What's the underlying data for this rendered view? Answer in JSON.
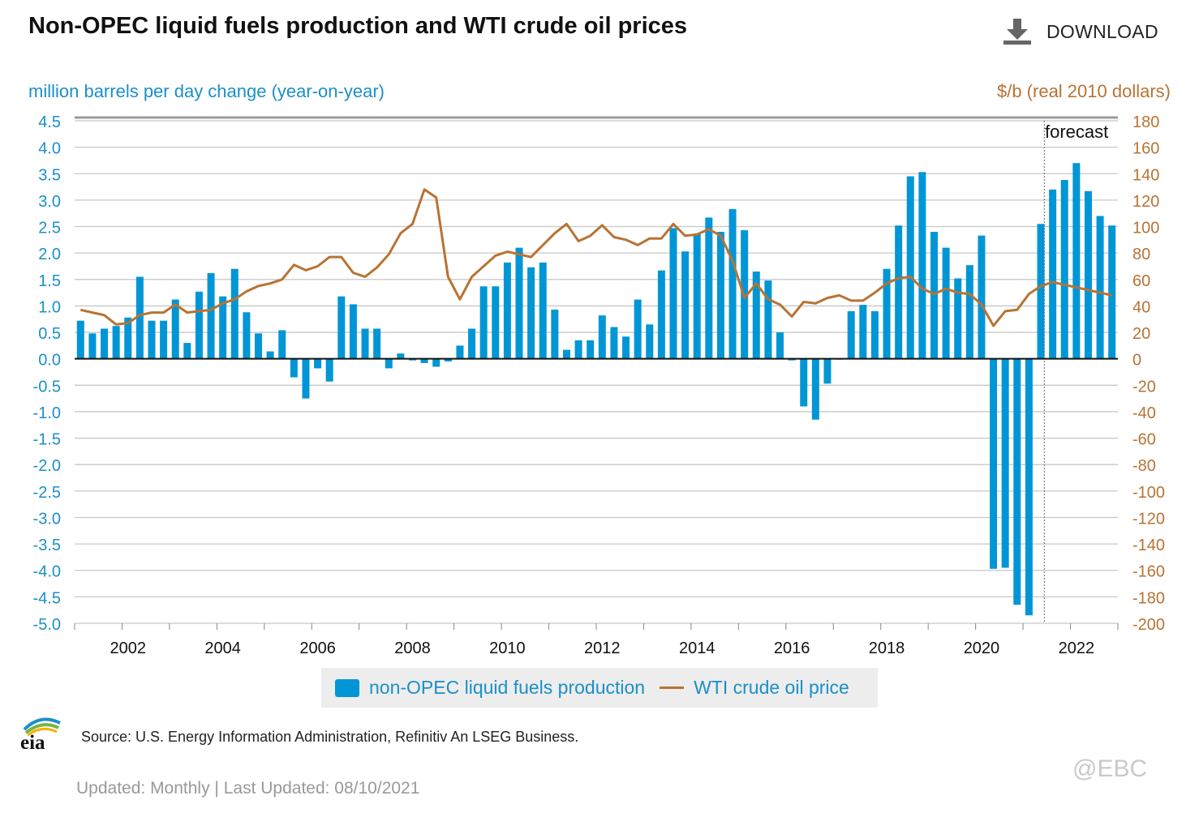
{
  "header": {
    "title": "Non-OPEC liquid fuels production and WTI crude oil prices",
    "download_label": "DOWNLOAD"
  },
  "chart_data": {
    "type": "bar",
    "title": "Non-OPEC liquid fuels production and WTI crude oil prices",
    "ylabel_left": "million barrels per day change (year-on-year)",
    "ylabel_right": "$/b (real 2010 dollars)",
    "ylim_left": [
      -5.0,
      4.5
    ],
    "ylim_right": [
      -200,
      180
    ],
    "yticks_left": [
      "4.5",
      "4.0",
      "3.5",
      "3.0",
      "2.5",
      "2.0",
      "1.5",
      "1.0",
      "0.5",
      "0.0",
      "-0.5",
      "-1.0",
      "-1.5",
      "-2.0",
      "-2.5",
      "-3.0",
      "-3.5",
      "-4.0",
      "-4.5",
      "-5.0"
    ],
    "yticks_right": [
      "180",
      "160",
      "140",
      "120",
      "100",
      "80",
      "60",
      "40",
      "20",
      "0",
      "-20",
      "-40",
      "-60",
      "-80",
      "-100",
      "-120",
      "-140",
      "-160",
      "-180",
      "-200"
    ],
    "xticks": [
      "2002",
      "2004",
      "2006",
      "2008",
      "2010",
      "2012",
      "2014",
      "2016",
      "2018",
      "2020",
      "2022"
    ],
    "xlim": [
      2001,
      2023
    ],
    "grid": true,
    "forecast_label": "forecast",
    "forecast_start": 2021.5,
    "categories": [
      "2001Q1",
      "2001Q2",
      "2001Q3",
      "2001Q4",
      "2002Q1",
      "2002Q2",
      "2002Q3",
      "2002Q4",
      "2003Q1",
      "2003Q2",
      "2003Q3",
      "2003Q4",
      "2004Q1",
      "2004Q2",
      "2004Q3",
      "2004Q4",
      "2005Q1",
      "2005Q2",
      "2005Q3",
      "2005Q4",
      "2006Q1",
      "2006Q2",
      "2006Q3",
      "2006Q4",
      "2007Q1",
      "2007Q2",
      "2007Q3",
      "2007Q4",
      "2008Q1",
      "2008Q2",
      "2008Q3",
      "2008Q4",
      "2009Q1",
      "2009Q2",
      "2009Q3",
      "2009Q4",
      "2010Q1",
      "2010Q2",
      "2010Q3",
      "2010Q4",
      "2011Q1",
      "2011Q2",
      "2011Q3",
      "2011Q4",
      "2012Q1",
      "2012Q2",
      "2012Q3",
      "2012Q4",
      "2013Q1",
      "2013Q2",
      "2013Q3",
      "2013Q4",
      "2014Q1",
      "2014Q2",
      "2014Q3",
      "2014Q4",
      "2015Q1",
      "2015Q2",
      "2015Q3",
      "2015Q4",
      "2016Q1",
      "2016Q2",
      "2016Q3",
      "2016Q4",
      "2017Q1",
      "2017Q2",
      "2017Q3",
      "2017Q4",
      "2018Q1",
      "2018Q2",
      "2018Q3",
      "2018Q4",
      "2019Q1",
      "2019Q2",
      "2019Q3",
      "2019Q4",
      "2020Q1",
      "2020Q2",
      "2020Q3",
      "2020Q4",
      "2021Q1",
      "2021Q2",
      "2021Q3",
      "2021Q4",
      "2022Q1",
      "2022Q2",
      "2022Q3",
      "2022Q4"
    ],
    "series": [
      {
        "name": "non-OPEC liquid fuels production",
        "type": "bar",
        "axis": "left",
        "color": "#0096d6",
        "values": [
          0.72,
          0.48,
          0.57,
          0.62,
          0.78,
          1.55,
          0.72,
          0.72,
          1.12,
          0.3,
          1.27,
          1.62,
          1.18,
          1.7,
          0.88,
          0.48,
          0.14,
          0.54,
          -0.35,
          -0.75,
          -0.18,
          -0.43,
          1.18,
          1.03,
          0.57,
          0.57,
          -0.18,
          0.1,
          -0.03,
          -0.08,
          -0.15,
          -0.05,
          0.25,
          0.57,
          1.37,
          1.37,
          1.82,
          2.1,
          1.73,
          1.82,
          0.93,
          0.17,
          0.35,
          0.35,
          0.82,
          0.6,
          0.42,
          1.12,
          0.65,
          1.67,
          2.47,
          2.03,
          2.37,
          2.67,
          2.4,
          2.83,
          2.43,
          1.65,
          1.48,
          0.5,
          -0.03,
          -0.9,
          -1.15,
          -0.47,
          0.0,
          0.9,
          1.02,
          0.9,
          1.7,
          2.52,
          3.45,
          3.53,
          2.4,
          2.1,
          1.52,
          1.77,
          2.33,
          -3.97,
          -3.95,
          -4.65,
          -4.85,
          2.55,
          3.2,
          3.38,
          3.7,
          3.17,
          2.7,
          2.52
        ]
      },
      {
        "name": "WTI crude oil price",
        "type": "line",
        "axis": "right",
        "color": "#b87333",
        "values": [
          37,
          35,
          33,
          26,
          27,
          33,
          35,
          35,
          41,
          35,
          36,
          37,
          42,
          45,
          51,
          55,
          57,
          60,
          71,
          67,
          70,
          77,
          77,
          65,
          62,
          69,
          79,
          95,
          102,
          128,
          122,
          62,
          45,
          62,
          70,
          78,
          81,
          79,
          77,
          86,
          95,
          102,
          89,
          93,
          101,
          92,
          90,
          86,
          91,
          91,
          102,
          93,
          94,
          98,
          93,
          74,
          46,
          57,
          45,
          41,
          32,
          43,
          42,
          46,
          48,
          44,
          44,
          50,
          57,
          61,
          62,
          53,
          49,
          53,
          50,
          49,
          41,
          25,
          36,
          37,
          49,
          55,
          58,
          56,
          54,
          52,
          50,
          48
        ]
      }
    ]
  },
  "legend": {
    "items": [
      {
        "label": "non-OPEC liquid fuels production"
      },
      {
        "label": "WTI crude oil price"
      }
    ]
  },
  "footer": {
    "logo_text": "eia",
    "source": "Source: U.S. Energy Information Administration, Refinitiv An LSEG Business.",
    "updated": "Updated: Monthly | Last Updated: 08/10/2021",
    "watermark": "@EBC"
  }
}
